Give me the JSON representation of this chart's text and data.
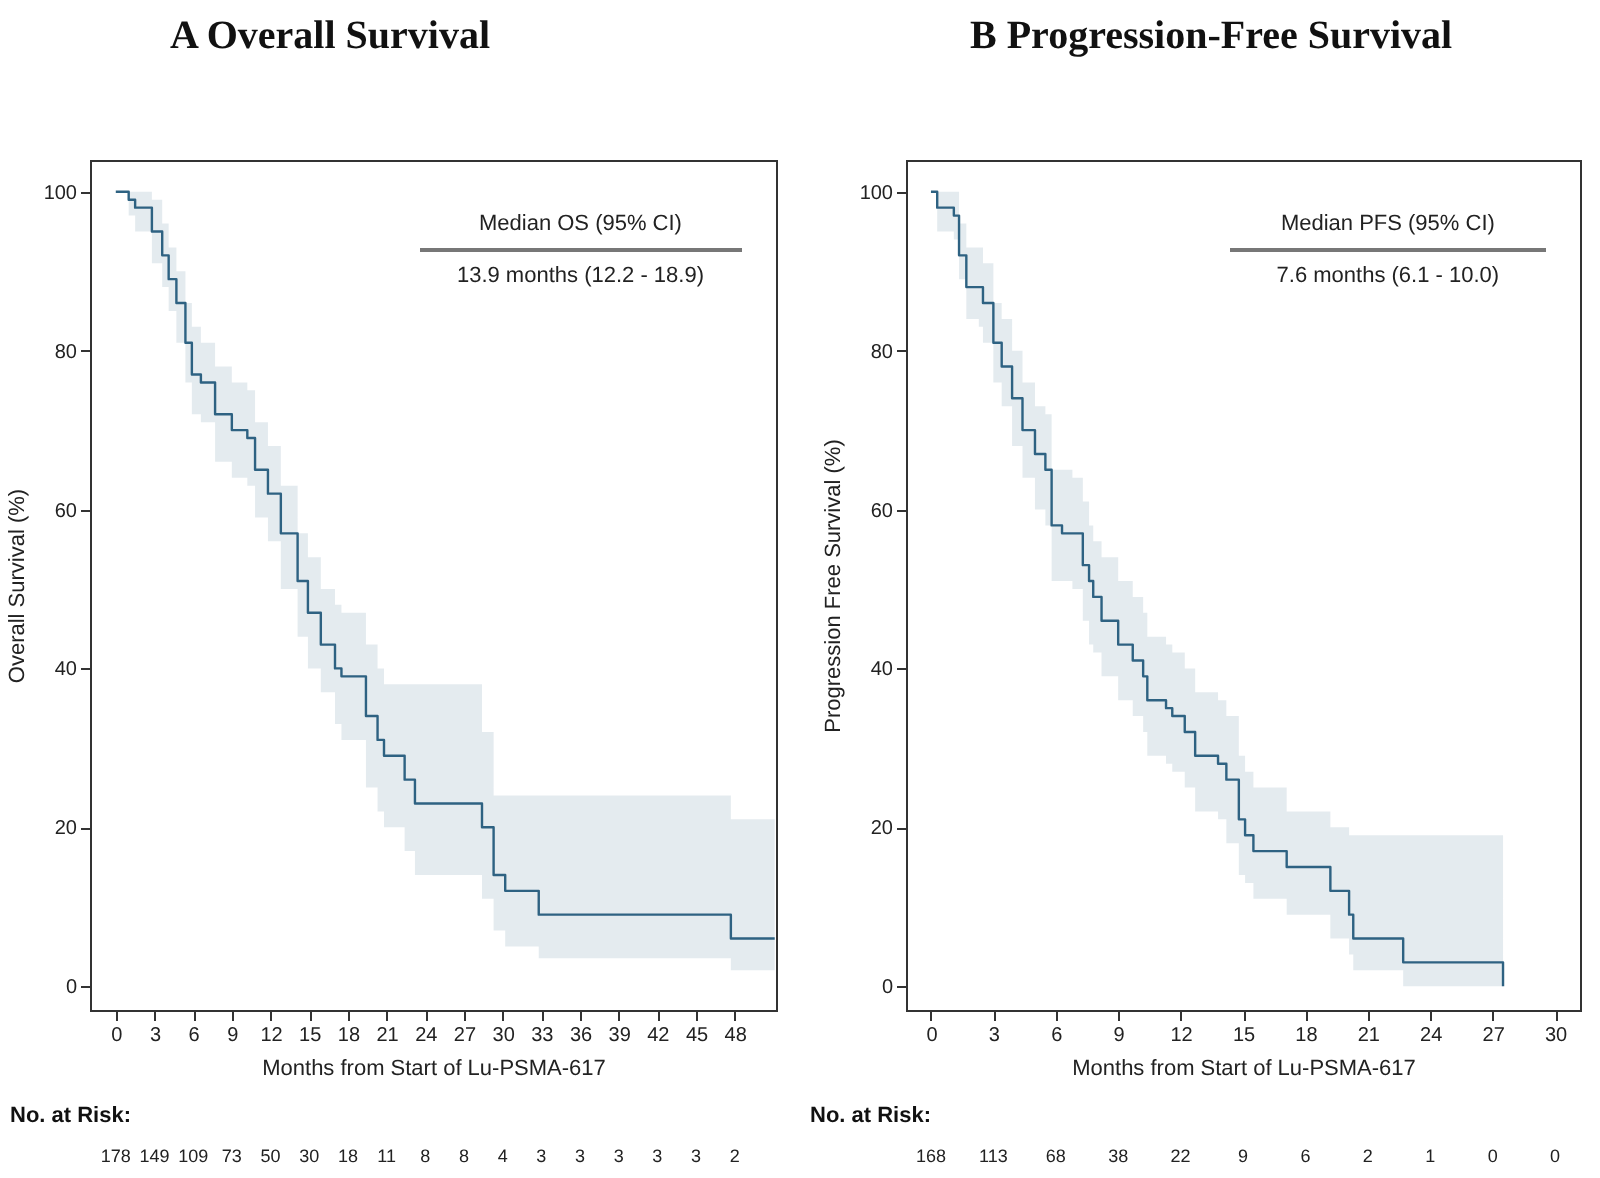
{
  "chart_data": [
    {
      "type": "step",
      "title": "A Overall Survival",
      "xlabel": "Months from Start of Lu-PSMA-617",
      "ylabel": "Overall Survival (%)",
      "xlim": [
        -2,
        51.2
      ],
      "ylim": [
        -3,
        104
      ],
      "xticks": [
        0,
        3,
        6,
        9,
        12,
        15,
        18,
        21,
        24,
        27,
        30,
        33,
        36,
        39,
        42,
        45,
        48
      ],
      "yticks": [
        0,
        20,
        40,
        60,
        80,
        100
      ],
      "series": [
        {
          "color": "#2e6282",
          "x": [
            0,
            1.0,
            1.5,
            2.8,
            3.6,
            4.1,
            4.7,
            5.4,
            5.9,
            6.6,
            7.7,
            9.0,
            10.2,
            10.8,
            11.8,
            12.8,
            14.1,
            14.9,
            15.9,
            17.0,
            17.5,
            19.4,
            20.3,
            20.8,
            22.4,
            23.2,
            28.4,
            29.3,
            30.2,
            32.8,
            47.7,
            51.1
          ],
          "values": [
            100,
            99,
            98,
            95,
            92,
            89,
            86,
            81,
            77,
            76,
            72,
            70,
            69,
            65,
            62,
            57,
            51,
            47,
            43,
            40,
            39,
            34,
            31,
            29,
            26,
            23,
            20,
            14,
            12,
            9,
            6,
            6
          ],
          "upper": [
            100,
            100,
            100,
            99,
            96,
            93,
            90,
            86,
            83,
            81,
            78,
            76,
            75,
            71,
            68,
            63,
            57,
            54,
            50,
            48,
            47,
            43,
            40,
            38,
            38,
            38,
            32,
            24,
            24,
            24,
            21,
            21
          ],
          "lower": [
            100,
            97,
            95,
            91,
            88,
            85,
            81,
            76,
            72,
            71,
            66,
            64,
            63,
            59,
            56,
            50,
            44,
            40,
            37,
            33,
            31,
            25,
            22,
            20,
            17,
            14,
            11,
            7,
            5,
            3.5,
            2,
            2
          ]
        }
      ],
      "annotations": [
        "Median OS (95% CI)",
        "13.9 months (12.2 - 18.9)",
        "No. at Risk:",
        "178",
        "149",
        "109",
        "73",
        "50",
        "30",
        "18",
        "11",
        "8",
        "8",
        "4",
        "3",
        "3",
        "3",
        "3",
        "3",
        "2"
      ]
    },
    {
      "type": "step",
      "title": "B Progression-Free Survival",
      "xlabel": "Months from Start of Lu-PSMA-617",
      "ylabel": "Progression Free Survival (%)",
      "xlim": [
        -1.2,
        31.2
      ],
      "ylim": [
        -3,
        104
      ],
      "xticks": [
        0,
        3,
        6,
        9,
        12,
        15,
        18,
        21,
        24,
        27,
        30
      ],
      "yticks": [
        0,
        20,
        40,
        60,
        80,
        100
      ],
      "series": [
        {
          "color": "#2e6282",
          "x": [
            0,
            0.3,
            1.1,
            1.35,
            1.7,
            2.3,
            2.5,
            3.0,
            3.4,
            3.9,
            4.4,
            5.0,
            5.5,
            5.8,
            6.3,
            6.8,
            7.3,
            7.6,
            7.8,
            8.2,
            8.9,
            9.0,
            9.7,
            10.2,
            10.4,
            11.3,
            11.6,
            12.2,
            12.7,
            13.8,
            14.2,
            14.8,
            15.1,
            15.5,
            17.1,
            19.2,
            20.1,
            20.3,
            22.7,
            27.5
          ],
          "values": [
            100,
            98,
            97,
            92,
            88,
            88,
            86,
            81,
            78,
            74,
            70,
            67,
            65,
            58,
            57,
            57,
            53,
            51,
            49,
            46,
            46,
            43,
            41,
            39,
            36,
            35,
            34,
            32,
            29,
            28,
            26,
            21,
            19,
            17,
            15,
            12,
            9,
            6,
            3,
            0
          ],
          "upper": [
            100,
            100,
            100,
            96,
            93,
            93,
            91,
            86,
            84,
            80,
            76,
            73,
            72,
            65,
            65,
            64,
            61,
            58,
            56,
            54,
            54,
            51,
            49,
            47,
            44,
            43,
            42,
            40,
            37,
            36,
            34,
            29,
            27,
            25,
            22,
            20,
            19,
            19,
            19,
            0
          ],
          "lower": [
            100,
            95,
            94,
            89,
            84,
            83,
            81,
            76,
            73,
            68,
            64,
            60,
            58,
            51,
            51,
            50,
            46,
            43,
            42,
            39,
            39,
            36,
            34,
            32,
            29,
            28,
            27,
            25,
            22,
            21,
            18,
            14,
            13,
            11,
            9,
            6,
            4,
            2,
            0,
            0
          ]
        }
      ],
      "annotations": [
        "Median PFS (95% CI)",
        "7.6 months (6.1 - 10.0)",
        "No. at Risk:",
        "168",
        "113",
        "68",
        "38",
        "22",
        "9",
        "6",
        "2",
        "1",
        "0",
        "0"
      ]
    }
  ]
}
